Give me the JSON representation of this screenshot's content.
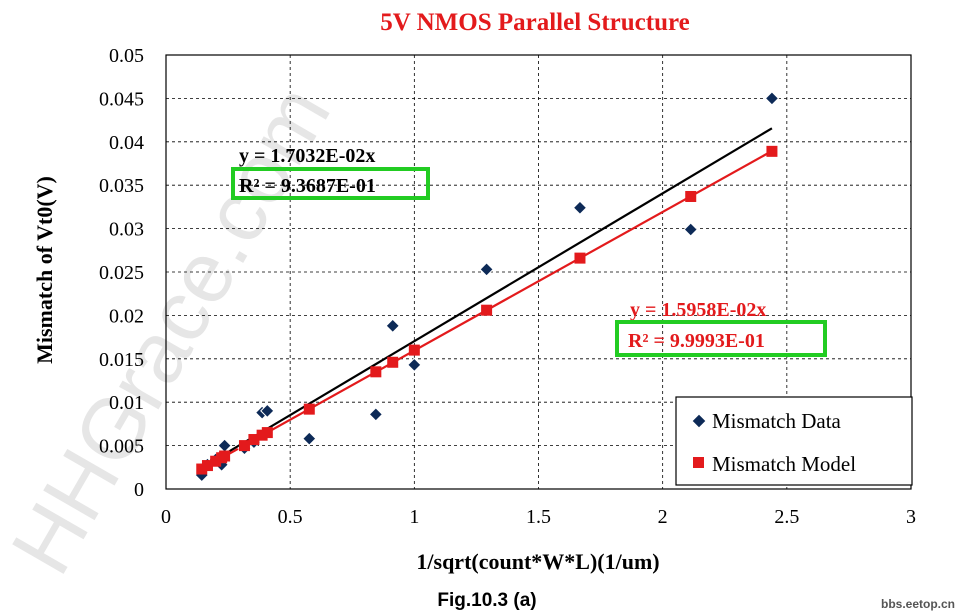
{
  "chart_data": {
    "type": "scatter",
    "title": "5V NMOS Parallel Structure",
    "xlabel": "1/sqrt(count*W*L)(1/um)",
    "ylabel": "Mismatch of Vt0(V)",
    "xlim": [
      0,
      3
    ],
    "ylim": [
      0,
      0.05
    ],
    "grid": true,
    "x_ticks": [
      "0",
      "0.5",
      "1",
      "1.5",
      "2",
      "2.5",
      "3"
    ],
    "y_ticks": [
      "0",
      "0.005",
      "0.01",
      "0.015",
      "0.02",
      "0.025",
      "0.03",
      "0.035",
      "0.04",
      "0.045",
      "0.05"
    ],
    "legend_position": "bottom-right",
    "series": [
      {
        "name": "Mismatch Data",
        "marker": "diamond",
        "color": "#0d2a57",
        "x": [
          0.144,
          0.167,
          0.2,
          0.224,
          0.236,
          0.316,
          0.354,
          0.387,
          0.408,
          0.577,
          0.845,
          0.913,
          1.0,
          1.291,
          1.667,
          2.113,
          2.44
        ],
        "y": [
          0.0016,
          0.0028,
          0.0034,
          0.0028,
          0.005,
          0.0047,
          0.0054,
          0.0088,
          0.009,
          0.0058,
          0.0086,
          0.0188,
          0.0143,
          0.0253,
          0.0324,
          0.0299,
          0.045
        ]
      },
      {
        "name": "Mismatch Model",
        "marker": "square",
        "color": "#e31a1c",
        "x": [
          0.144,
          0.167,
          0.2,
          0.224,
          0.236,
          0.316,
          0.354,
          0.387,
          0.408,
          0.577,
          0.845,
          0.913,
          1.0,
          1.291,
          1.667,
          2.113,
          2.44
        ],
        "y": [
          0.0023,
          0.0027,
          0.0032,
          0.0036,
          0.0038,
          0.005,
          0.0057,
          0.0062,
          0.0065,
          0.0092,
          0.0135,
          0.0146,
          0.016,
          0.0206,
          0.0266,
          0.0337,
          0.0389
        ]
      }
    ],
    "trendlines": [
      {
        "for_series": "Mismatch Data",
        "color": "#000000",
        "slope": 0.017032,
        "x_range": [
          0.144,
          2.44
        ],
        "equation": "y = 1.7032E-02x",
        "r2": "R² = 9.3687E-01"
      },
      {
        "for_series": "Mismatch Model",
        "color": "#e31a1c",
        "slope": 0.015958,
        "x_range": [
          0.144,
          2.44
        ],
        "equation": "y = 1.5958E-02x",
        "r2": "R² = 9.9993E-01"
      }
    ]
  },
  "colors": {
    "title": "#e31a1c",
    "highlight_box": "#22cc22",
    "watermark": "#e6e6e6"
  },
  "caption": "Fig.10.3 (a)",
  "source_label": "bbs.eetop.cn",
  "watermark_text": "HHGrace.com"
}
